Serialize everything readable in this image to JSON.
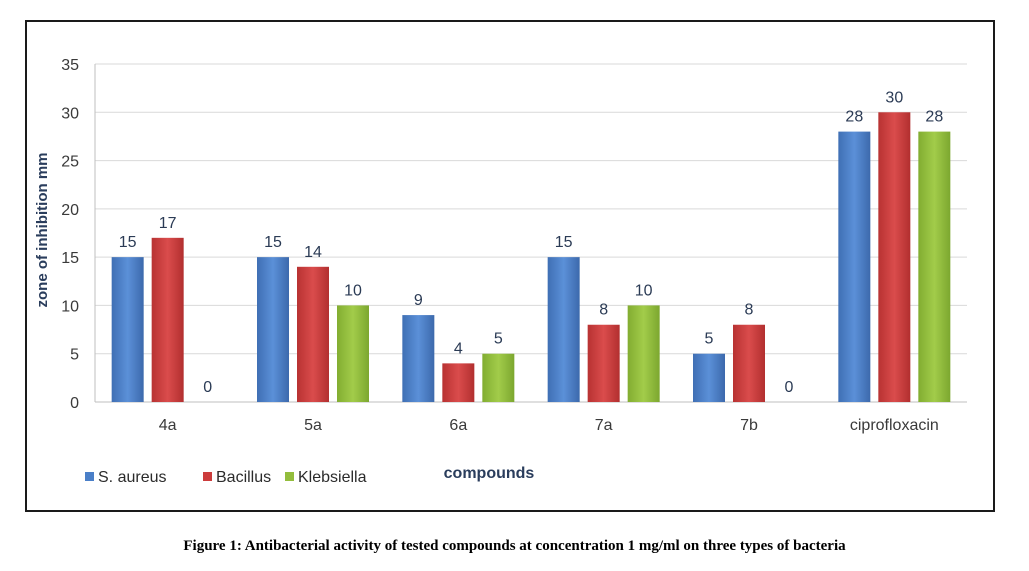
{
  "caption": "Figure 1: Antibacterial activity of tested compounds at concentration 1 mg/ml on three types of bacteria",
  "chart_data": {
    "type": "bar",
    "categories": [
      "4a",
      "5a",
      "6a",
      "7a",
      "7b",
      "ciprofloxacin"
    ],
    "series": [
      {
        "name": "S. aureus",
        "color": "#4a7fc8",
        "values": [
          15,
          15,
          9,
          15,
          5,
          28
        ]
      },
      {
        "name": "Bacillus",
        "color": "#cc3c3c",
        "values": [
          17,
          14,
          4,
          8,
          8,
          30
        ]
      },
      {
        "name": "Klebsiella",
        "color": "#93bd3d",
        "values": [
          0,
          10,
          5,
          10,
          0,
          28
        ]
      }
    ],
    "title": "",
    "xlabel": "compounds",
    "ylabel": "zone of inhibition mm",
    "ylim": [
      0,
      35
    ],
    "yticks": [
      0,
      5,
      10,
      15,
      20,
      25,
      30,
      35
    ],
    "grid": true,
    "legend": "bottom-left"
  }
}
